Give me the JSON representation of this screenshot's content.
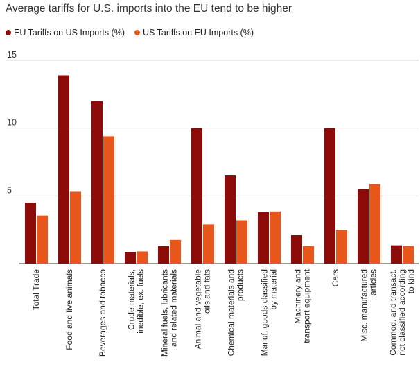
{
  "chart_data": {
    "type": "bar",
    "title": "Average tariffs for U.S. imports into the EU tend to be higher",
    "xlabel": "",
    "ylabel": "",
    "ylim": [
      0,
      15
    ],
    "yticks": [
      5,
      10,
      15
    ],
    "grid": true,
    "legend_position": "top-left",
    "categories": [
      [
        "Total Trade"
      ],
      [
        "Food and live animals"
      ],
      [
        "Beverages and tobacco"
      ],
      [
        "Crude materials,",
        "inedible, ex. fuels"
      ],
      [
        "Mineral fuels, lubricants",
        "and related materials"
      ],
      [
        "Animal and vegetable",
        "oils and fats"
      ],
      [
        "Chemical materials and",
        "products"
      ],
      [
        "Manuf. goods classified",
        "by material"
      ],
      [
        "Machinery and",
        "transport equipment"
      ],
      [
        "Cars"
      ],
      [
        "Misc. manufactured",
        "articles"
      ],
      [
        "Commod. and transact.",
        "not classified according",
        "to kind"
      ]
    ],
    "series": [
      {
        "name": "EU Tariffs on US Imports (%)",
        "color": "#8b0a0a",
        "values": [
          4.5,
          13.9,
          12.0,
          0.85,
          1.3,
          10.0,
          6.5,
          3.8,
          2.1,
          10.0,
          5.5,
          1.35
        ]
      },
      {
        "name": "US Tariffs on EU Imports (%)",
        "color": "#e8561c",
        "values": [
          3.55,
          5.3,
          9.4,
          0.9,
          1.75,
          2.9,
          3.2,
          3.85,
          1.3,
          2.5,
          5.85,
          1.3
        ]
      }
    ]
  }
}
